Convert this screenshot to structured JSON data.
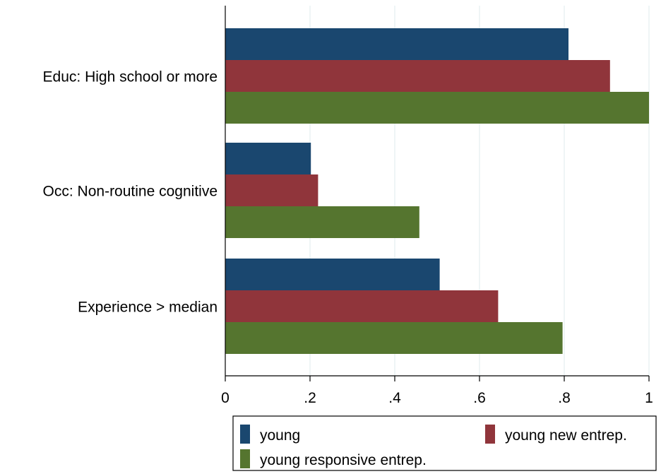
{
  "chart_data": {
    "type": "bar",
    "orientation": "horizontal",
    "categories": [
      "Educ: High school or more",
      "Occ: Non-routine cognitive",
      "Experience > median"
    ],
    "series": [
      {
        "name": "young",
        "color": "#1a476f",
        "values": [
          0.81,
          0.202,
          0.506
        ]
      },
      {
        "name": "young new entrep.",
        "color": "#90353b",
        "values": [
          0.908,
          0.219,
          0.644
        ]
      },
      {
        "name": "young responsive entrep.",
        "color": "#55752f",
        "values": [
          1.0,
          0.458,
          0.796
        ]
      }
    ],
    "xlim": [
      0,
      1
    ],
    "xticks": [
      0,
      0.2,
      0.4,
      0.6,
      0.8,
      1
    ],
    "xtick_labels": [
      "0",
      ".2",
      ".4",
      ".6",
      ".8",
      "1"
    ],
    "grid": true,
    "legend_position": "bottom"
  }
}
